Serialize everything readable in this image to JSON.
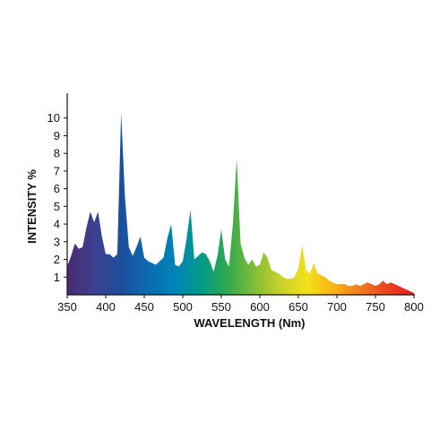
{
  "chart_data": {
    "type": "area",
    "title": "",
    "xlabel": "WAVELENGTH (Nm)",
    "ylabel": "INTENSITY %",
    "xlim": [
      350,
      800
    ],
    "ylim": [
      0,
      11
    ],
    "x_ticks": [
      350,
      400,
      450,
      500,
      550,
      600,
      650,
      700,
      750,
      800
    ],
    "y_ticks": [
      1,
      2,
      3,
      4,
      5,
      6,
      7,
      8,
      9,
      10
    ],
    "grid": false,
    "fill": "visible-spectrum gradient (violet to red)",
    "spectral_colors": [
      "#4a2a72",
      "#3d3f8f",
      "#1d4f9c",
      "#0a6ab0",
      "#0083b8",
      "#009a8a",
      "#30a84c",
      "#7fbd39",
      "#c8d12a",
      "#f3e01a",
      "#f9b31a",
      "#f07a1e",
      "#e9421f",
      "#e01f26"
    ],
    "series": [
      {
        "x": [
          350,
          355,
          360,
          365,
          370,
          375,
          380,
          385,
          390,
          395,
          400,
          405,
          410,
          415,
          420,
          425,
          430,
          435,
          440,
          445,
          450,
          455,
          460,
          465,
          470,
          475,
          480,
          485,
          490,
          495,
          500,
          505,
          510,
          515,
          520,
          525,
          530,
          535,
          540,
          545,
          550,
          555,
          560,
          565,
          570,
          575,
          580,
          585,
          590,
          595,
          600,
          605,
          610,
          615,
          620,
          625,
          630,
          635,
          640,
          645,
          650,
          655,
          660,
          665,
          670,
          675,
          680,
          685,
          690,
          695,
          700,
          705,
          710,
          715,
          720,
          725,
          730,
          735,
          740,
          745,
          750,
          755,
          760,
          765,
          770,
          775,
          780,
          785,
          790,
          795,
          800
        ],
        "values": [
          1.6,
          2.2,
          2.9,
          2.6,
          2.7,
          3.8,
          4.7,
          4.1,
          4.7,
          3.3,
          2.3,
          2.3,
          2.1,
          2.3,
          10.3,
          5.5,
          2.7,
          2.2,
          2.7,
          3.3,
          2.1,
          1.9,
          1.8,
          1.7,
          1.9,
          2.1,
          3.2,
          4.0,
          1.7,
          1.6,
          1.9,
          3.2,
          4.8,
          2.0,
          2.2,
          2.4,
          2.3,
          1.9,
          1.3,
          2.2,
          3.7,
          2.0,
          1.6,
          4.0,
          7.7,
          2.9,
          2.1,
          1.7,
          2.0,
          1.6,
          1.7,
          2.4,
          2.1,
          1.4,
          1.3,
          1.2,
          1.0,
          0.9,
          0.9,
          1.0,
          1.5,
          2.8,
          1.4,
          1.2,
          1.8,
          1.2,
          1.1,
          1.0,
          0.8,
          0.7,
          0.6,
          0.6,
          0.6,
          0.5,
          0.5,
          0.6,
          0.5,
          0.6,
          0.7,
          0.6,
          0.5,
          0.6,
          0.8,
          0.6,
          0.7,
          0.6,
          0.5,
          0.4,
          0.3,
          0.2,
          0.1
        ]
      }
    ]
  }
}
